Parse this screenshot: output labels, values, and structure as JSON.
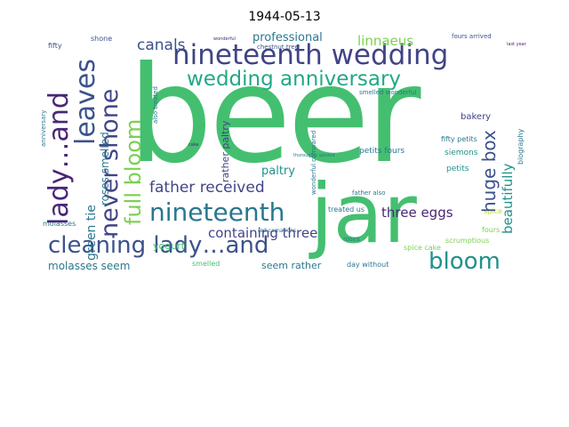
{
  "title": "1944-05-13",
  "palette": {
    "dark_purple": "#482677",
    "purple": "#414487",
    "indigo": "#3b528b",
    "blue": "#31688e",
    "teal_blue": "#2a788e",
    "teal": "#21918c",
    "green_teal": "#22a884",
    "green": "#44bf70",
    "light_green": "#7ad151",
    "yellow_green": "#bddf26"
  },
  "words": [
    "beer",
    "jar",
    "nineteenth wedding",
    "wedding anniversary",
    "nineteenth",
    "cleaning lady…and",
    "lady…and",
    "leaves",
    "never shone",
    "full bloom",
    "bloom",
    "father received",
    "huge box",
    "canals",
    "linnaeus",
    "containing three",
    "three eggs",
    "beautifully",
    "green tie",
    "roses smelled",
    "professional",
    "paltry",
    "rather paltry",
    "molasses seem",
    "seem rather",
    "yogurt",
    "fifty petits",
    "petits fours",
    "bakery",
    "siemons",
    "petits",
    "spice",
    "fours",
    "scrumptious",
    "day without",
    "treated us",
    "spice cake",
    "father also",
    "wonderful compared",
    "smelled wonderful",
    "biography",
    "shone",
    "fifty",
    "chestnut tree",
    "fours arrived",
    "smelled",
    "red carnations",
    "roses",
    "also treated",
    "anniversary",
    "molasses",
    "last year",
    "cake",
    "wonderful",
    "thoroughly spoiled"
  ]
}
